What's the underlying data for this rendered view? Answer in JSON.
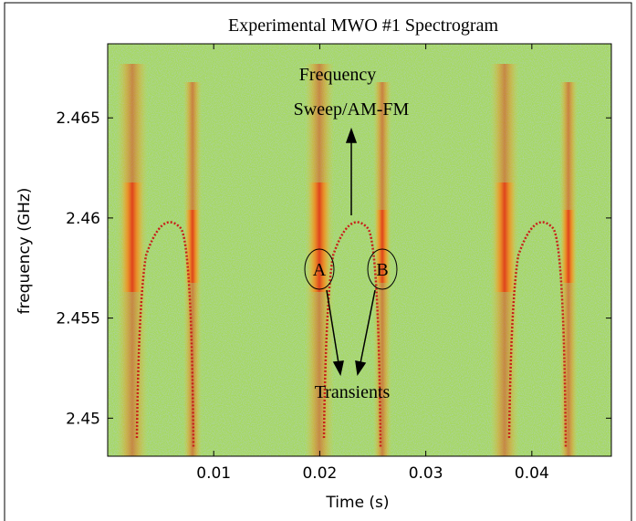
{
  "chart_data": {
    "type": "spectrogram",
    "title": "Experimental MWO #1 Spectrogram",
    "x_label": "Time (s)",
    "y_label": "frequency (GHz)",
    "xlim": [
      0,
      0.0475
    ],
    "xticks": [
      0.01,
      0.02,
      0.03,
      0.04
    ],
    "ylim": [
      2.4481,
      2.4687
    ],
    "yticks": [
      2.45,
      2.455,
      2.46,
      2.465
    ],
    "annotations": {
      "sweep_line1": "Frequency",
      "sweep_line2": "Sweep/AM-FM",
      "transients": "Transients",
      "a": "A",
      "b": "B"
    }
  }
}
